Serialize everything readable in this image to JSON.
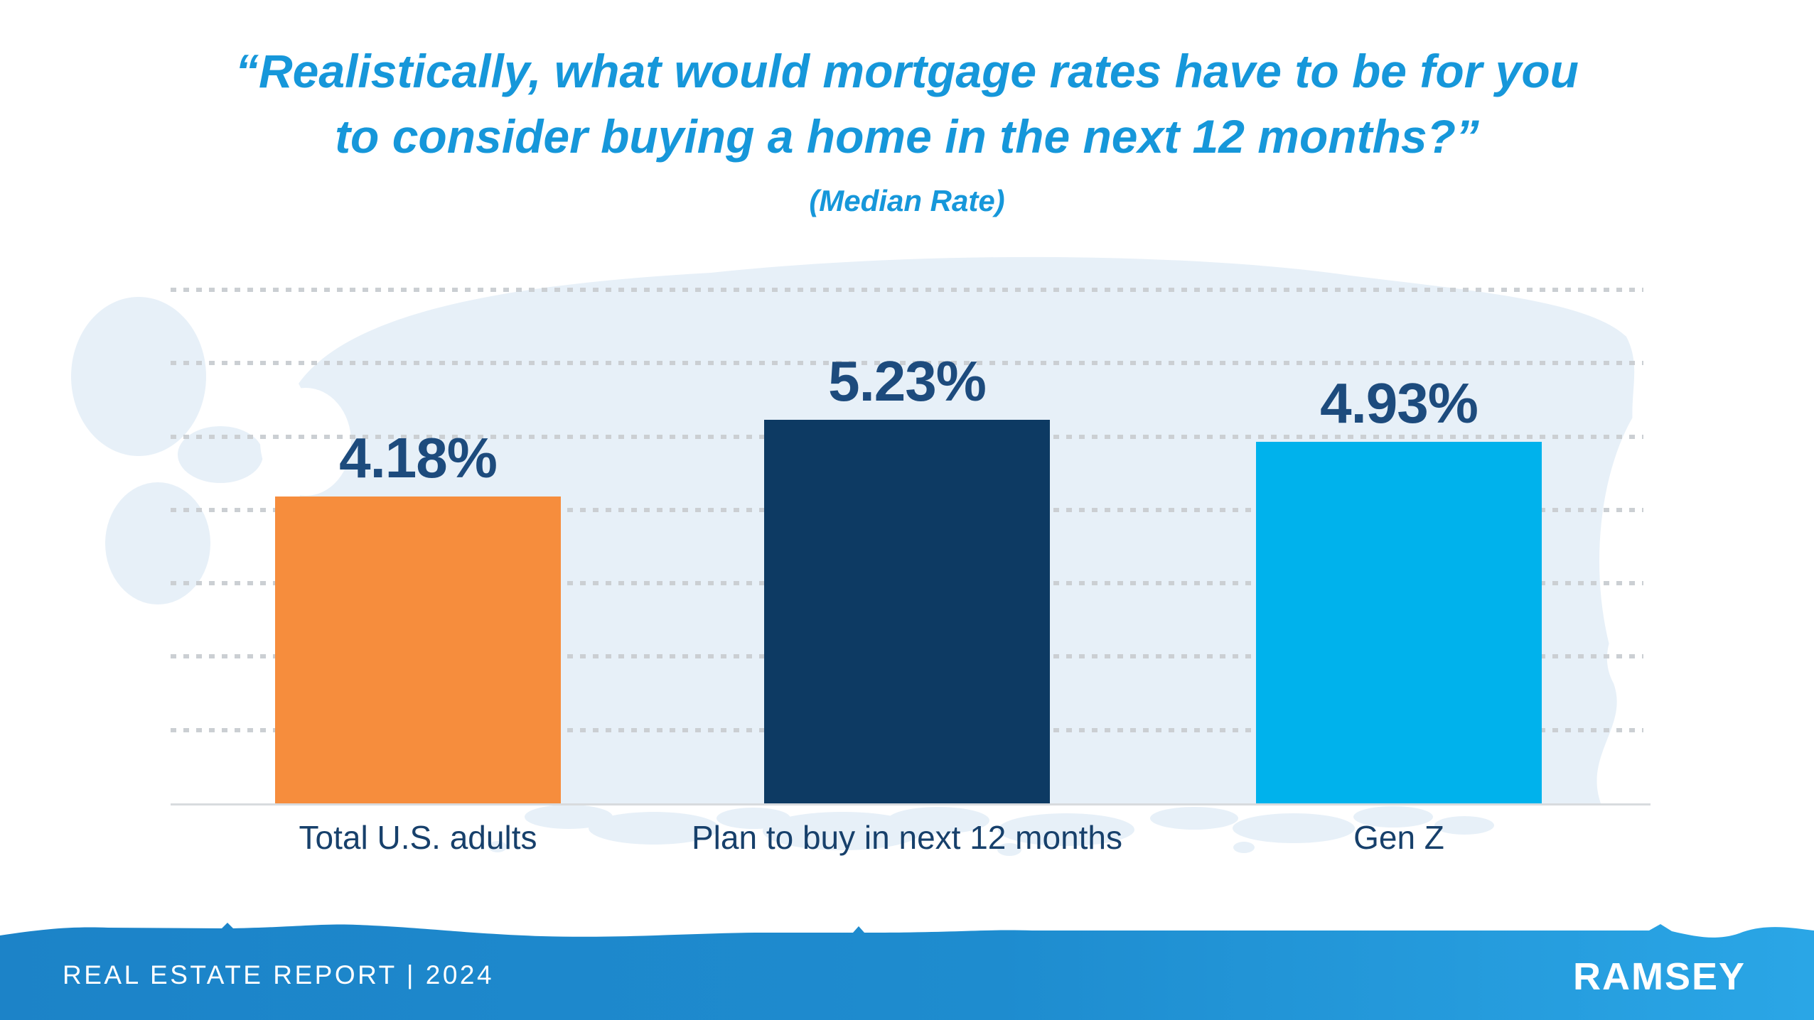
{
  "page": {
    "background": "#ffffff"
  },
  "title": {
    "line1": "“Realistically, what would mortgage rates have to be for you",
    "line2": "to consider buying a home in the next 12 months?”",
    "subtitle": "(Median Rate)",
    "color": "#1697da"
  },
  "chart_data": {
    "type": "bar",
    "title": "“Realistically, what would mortgage rates have to be for you to consider buying a home in the next 12 months?” (Median Rate)",
    "categories": [
      "Total U.S. adults",
      "Plan to buy in next 12 months",
      "Gen Z"
    ],
    "values": [
      4.18,
      5.23,
      4.93
    ],
    "value_labels": [
      "4.18%",
      "5.23%",
      "4.93%"
    ],
    "unit": "percent (median mortgage rate)",
    "bar_colors": [
      "#f68d3d",
      "#0d3a63",
      "#00b2ec"
    ],
    "ylim": [
      0,
      7
    ],
    "gridline_values": [
      1,
      2,
      3,
      4,
      5,
      6,
      7
    ],
    "grid_style": "dotted-horizontal",
    "legend": "none",
    "value_label_color": "#1d4b7d",
    "category_label_color": "#17406b"
  },
  "footer": {
    "report_label": "REAL ESTATE REPORT | 2024",
    "brand": "RAMSEY",
    "band_color_left": "#1c83c8",
    "band_color_right": "#2aa6e6",
    "text_color": "#ffffff"
  },
  "decor": {
    "wash_color": "#e7f0f8",
    "gridline_color": "#cbcfd3",
    "baseline_color": "#d8dbde"
  }
}
